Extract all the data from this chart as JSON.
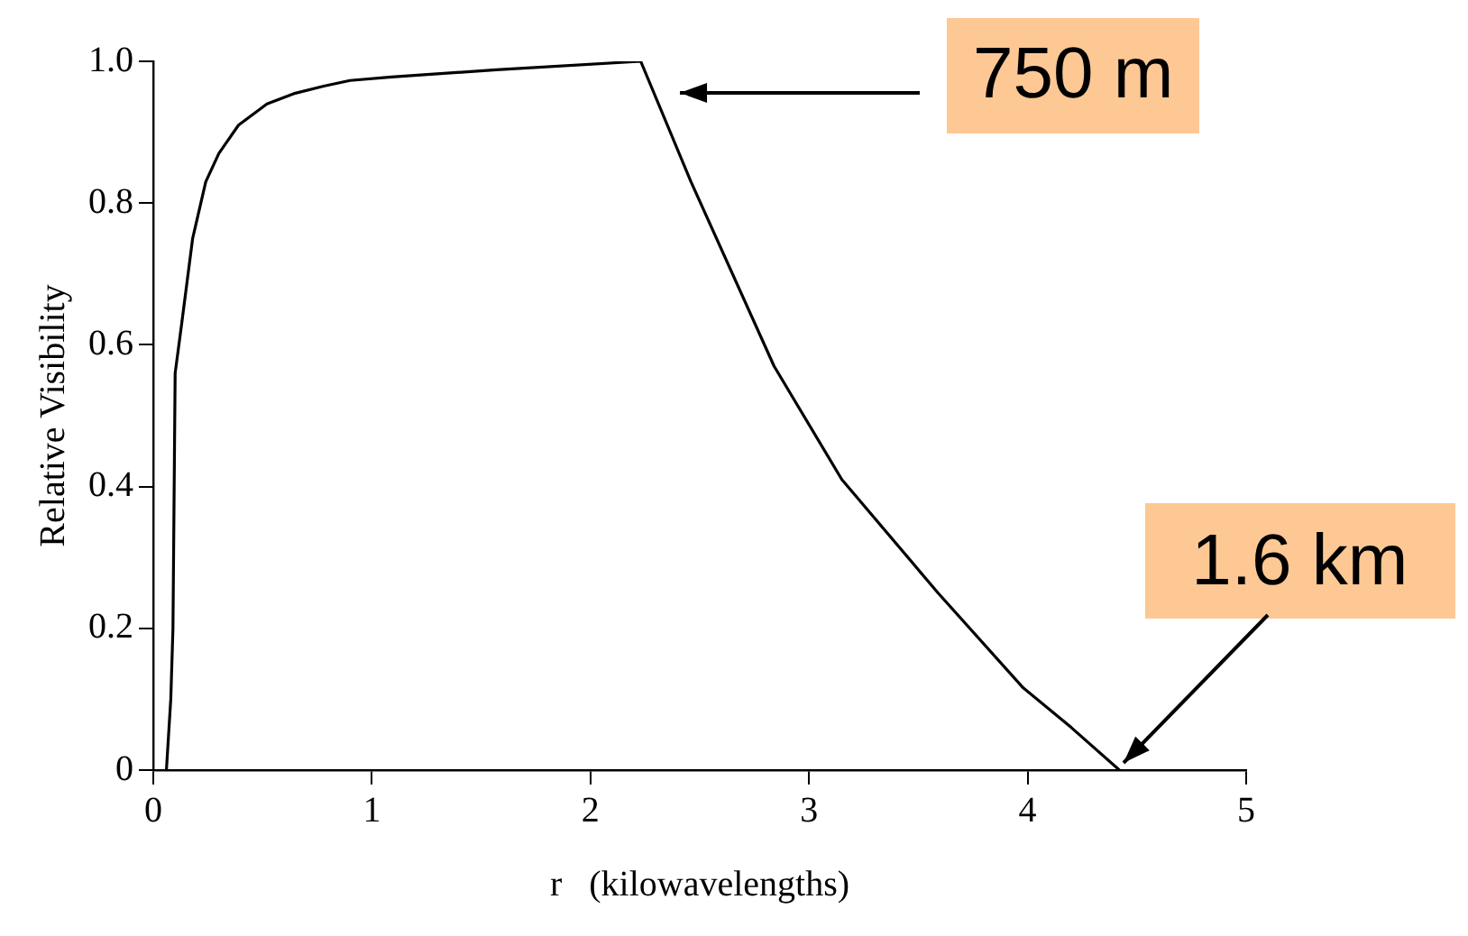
{
  "chart_data": {
    "type": "line",
    "xlabel": "r   (kilowavelengths)",
    "ylabel": "Relative Visibility",
    "x": [
      0.06,
      0.08,
      0.09,
      0.1,
      0.13,
      0.18,
      0.24,
      0.3,
      0.39,
      0.52,
      0.65,
      0.78,
      0.9,
      1.09,
      1.57,
      2.23,
      2.46,
      2.84,
      3.15,
      3.59,
      3.98,
      4.2,
      4.42
    ],
    "series": [
      {
        "color": "#000000",
        "values": [
          0,
          0.1,
          0.2,
          0.56,
          0.63,
          0.75,
          0.83,
          0.87,
          0.91,
          0.94,
          0.955,
          0.965,
          0.973,
          0.978,
          0.988,
          1.0,
          0.83,
          0.57,
          0.41,
          0.25,
          0.116,
          0.06,
          0
        ]
      }
    ],
    "xlim": [
      0,
      5
    ],
    "xticks": [
      0,
      1,
      2,
      3,
      4,
      5
    ],
    "ylim": [
      0,
      1
    ],
    "yticks": [
      {
        "value": 0,
        "label": "0"
      },
      {
        "value": 0.2,
        "label": "0.2"
      },
      {
        "value": 0.4,
        "label": "0.4"
      },
      {
        "value": 0.6,
        "label": "0.6"
      },
      {
        "value": 0.8,
        "label": "0.8"
      },
      {
        "value": 1,
        "label": "1.0"
      }
    ],
    "grid": false,
    "legend": false,
    "marker": "none",
    "line_style": "solid",
    "annotations": [
      "750 m",
      {
        "text": "1.6 km",
        "x": 4.42,
        "y": 0
      }
    ]
  }
}
